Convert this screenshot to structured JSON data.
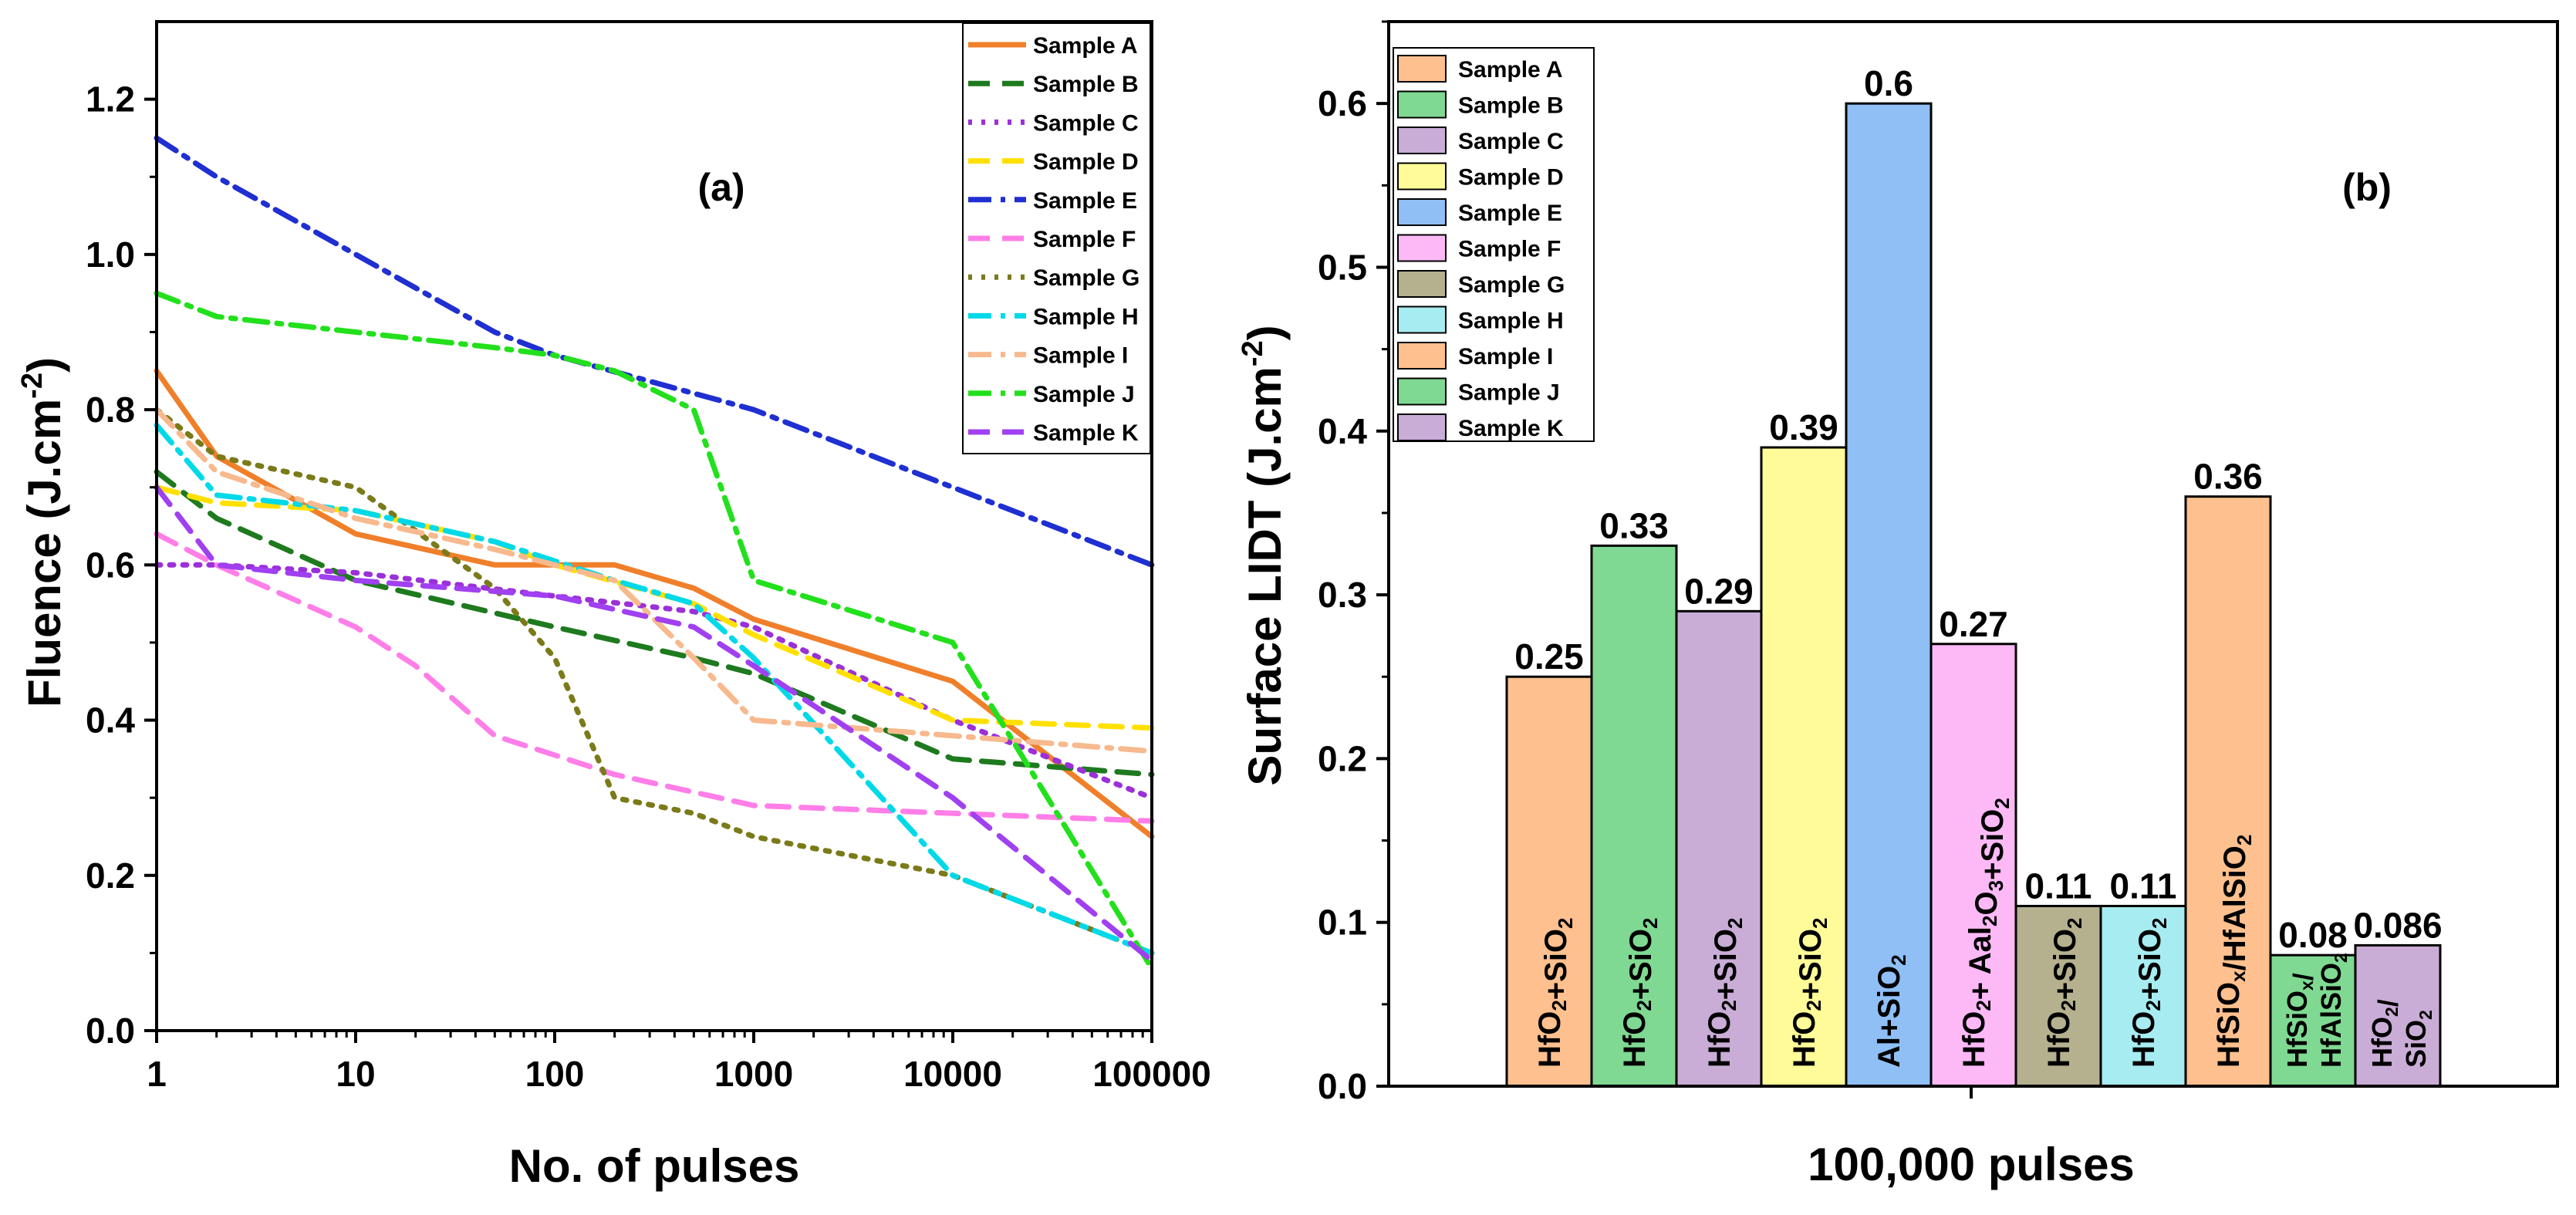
{
  "chart_data": [
    {
      "type": "line",
      "panel_label": "(a)",
      "xlabel": "No. of pulses",
      "ylabel": "Fluence (J.cm",
      "ylabel_sup": "-2",
      "ylabel_close": ")",
      "xscale": "log",
      "xlim": [
        1,
        100000
      ],
      "ylim": [
        0,
        1.3
      ],
      "xticks": [
        1,
        10,
        100,
        1000,
        10000,
        100000
      ],
      "xtick_labels": [
        "1",
        "10",
        "100",
        "1000",
        "10000",
        "100000"
      ],
      "yticks": [
        0,
        0.2,
        0.4,
        0.6,
        0.8,
        1.0,
        1.2
      ],
      "ytick_labels": [
        "0.0",
        "0.2",
        "0.4",
        "0.6",
        "0.8",
        "1.0",
        "1.2"
      ],
      "legend_position": "top-right",
      "series": [
        {
          "name": "Sample A",
          "color": "#f07f2a",
          "dash": "solid",
          "x": [
            1,
            2,
            10,
            50,
            200,
            500,
            1000,
            10000,
            100000
          ],
          "values": [
            0.85,
            0.74,
            0.64,
            0.6,
            0.6,
            0.57,
            0.53,
            0.45,
            0.25
          ]
        },
        {
          "name": "Sample B",
          "color": "#1e7a1e",
          "dash": "dash",
          "x": [
            1,
            2,
            10,
            100,
            500,
            1000,
            10000,
            100000
          ],
          "values": [
            0.72,
            0.66,
            0.58,
            0.52,
            0.48,
            0.46,
            0.35,
            0.33
          ]
        },
        {
          "name": "Sample C",
          "color": "#9b30d9",
          "dash": "dot",
          "x": [
            1,
            2,
            10,
            100,
            500,
            1000,
            10000,
            100000
          ],
          "values": [
            0.6,
            0.6,
            0.59,
            0.56,
            0.54,
            0.52,
            0.4,
            0.3
          ]
        },
        {
          "name": "Sample D",
          "color": "#ffe000",
          "dash": "dash",
          "x": [
            1,
            2,
            10,
            50,
            100,
            500,
            1000,
            10000,
            100000
          ],
          "values": [
            0.7,
            0.68,
            0.67,
            0.63,
            0.6,
            0.55,
            0.51,
            0.4,
            0.39
          ]
        },
        {
          "name": "Sample E",
          "color": "#1f2fd1",
          "dash": "dashdot",
          "x": [
            1,
            2,
            10,
            50,
            100,
            1000,
            10000,
            100000
          ],
          "values": [
            1.15,
            1.1,
            1.0,
            0.9,
            0.87,
            0.8,
            0.7,
            0.6
          ]
        },
        {
          "name": "Sample F",
          "color": "#ff7ee8",
          "dash": "dash",
          "x": [
            1,
            2,
            10,
            20,
            50,
            200,
            1000,
            10000,
            100000
          ],
          "values": [
            0.64,
            0.6,
            0.52,
            0.47,
            0.38,
            0.33,
            0.29,
            0.28,
            0.27
          ]
        },
        {
          "name": "Sample G",
          "color": "#7a7a1a",
          "dash": "dot",
          "x": [
            1,
            2,
            10,
            50,
            100,
            200,
            500,
            1000,
            10000,
            100000
          ],
          "values": [
            0.8,
            0.74,
            0.7,
            0.57,
            0.48,
            0.3,
            0.28,
            0.25,
            0.2,
            0.1
          ]
        },
        {
          "name": "Sample H",
          "color": "#00d9e8",
          "dash": "dashdot",
          "x": [
            1,
            2,
            10,
            50,
            200,
            500,
            1000,
            10000,
            100000
          ],
          "values": [
            0.78,
            0.69,
            0.67,
            0.63,
            0.58,
            0.55,
            0.48,
            0.2,
            0.1
          ]
        },
        {
          "name": "Sample I",
          "color": "#f7b98d",
          "dash": "dashdot",
          "x": [
            1,
            2,
            10,
            50,
            200,
            500,
            1000,
            10000,
            100000
          ],
          "values": [
            0.8,
            0.72,
            0.66,
            0.62,
            0.58,
            0.48,
            0.4,
            0.38,
            0.36
          ]
        },
        {
          "name": "Sample J",
          "color": "#22e01c",
          "dash": "dashdot",
          "x": [
            1,
            2,
            10,
            50,
            100,
            200,
            500,
            1000,
            10000,
            100000
          ],
          "values": [
            0.95,
            0.92,
            0.9,
            0.88,
            0.87,
            0.85,
            0.8,
            0.58,
            0.5,
            0.08
          ]
        },
        {
          "name": "Sample K",
          "color": "#a040f0",
          "dash": "dash",
          "x": [
            1,
            2,
            10,
            100,
            500,
            1000,
            10000,
            100000
          ],
          "values": [
            0.7,
            0.6,
            0.58,
            0.56,
            0.52,
            0.47,
            0.3,
            0.09
          ]
        }
      ]
    },
    {
      "type": "bar",
      "panel_label": "(b)",
      "xlabel": "100,000 pulses",
      "ylabel": "Surface LIDT (J.cm",
      "ylabel_sup": "-2",
      "ylabel_close": ")",
      "ylim": [
        0,
        0.65
      ],
      "yticks": [
        0,
        0.1,
        0.2,
        0.3,
        0.4,
        0.5,
        0.6
      ],
      "ytick_labels": [
        "0.0",
        "0.1",
        "0.2",
        "0.3",
        "0.4",
        "0.5",
        "0.6"
      ],
      "legend_position": "top-left",
      "series_names": [
        "Sample A",
        "Sample B",
        "Sample C",
        "Sample D",
        "Sample E",
        "Sample F",
        "Sample G",
        "Sample H",
        "Sample I",
        "Sample J",
        "Sample K"
      ],
      "colors": [
        "#fdc08e",
        "#7fd992",
        "#c9add6",
        "#fffb99",
        "#8fbff5",
        "#fcb9f6",
        "#b5b08e",
        "#a7ecf0",
        "#fdc08e",
        "#7fd992",
        "#c9add6"
      ],
      "values": [
        0.25,
        0.33,
        0.29,
        0.39,
        0.6,
        0.27,
        0.11,
        0.11,
        0.36,
        0.08,
        0.086
      ],
      "value_labels": [
        "0.25",
        "0.33",
        "0.29",
        "0.39",
        "0.6",
        "0.27",
        "0.11",
        "0.11",
        "0.36",
        "0.08",
        "0.086"
      ],
      "bar_labels": [
        [
          [
            "HfO",
            ""
          ],
          [
            "2",
            "sub"
          ],
          [
            "+SiO",
            ""
          ],
          [
            "2",
            "sub"
          ]
        ],
        [
          [
            "HfO",
            ""
          ],
          [
            "2",
            "sub"
          ],
          [
            "+SiO",
            ""
          ],
          [
            "2",
            "sub"
          ]
        ],
        [
          [
            "HfO",
            ""
          ],
          [
            "2",
            "sub"
          ],
          [
            "+SiO",
            ""
          ],
          [
            "2",
            "sub"
          ]
        ],
        [
          [
            "HfO",
            ""
          ],
          [
            "2",
            "sub"
          ],
          [
            "+SiO",
            ""
          ],
          [
            "2",
            "sub"
          ]
        ],
        [
          [
            "Al+SiO",
            ""
          ],
          [
            "2",
            "sub"
          ]
        ],
        [
          [
            "HfO",
            ""
          ],
          [
            "2",
            "sub"
          ],
          [
            "+ Aal",
            ""
          ],
          [
            "2",
            "sub"
          ],
          [
            "O",
            ""
          ],
          [
            "3",
            "sub"
          ],
          [
            "+SiO",
            ""
          ],
          [
            "2",
            "sub"
          ]
        ],
        [
          [
            "HfO",
            ""
          ],
          [
            "2",
            "sub"
          ],
          [
            "+SiO",
            ""
          ],
          [
            "2",
            "sub"
          ]
        ],
        [
          [
            "HfO",
            ""
          ],
          [
            "2",
            "sub"
          ],
          [
            "+SiO",
            ""
          ],
          [
            "2",
            "sub"
          ]
        ],
        [
          [
            "HfSiO",
            ""
          ],
          [
            "x",
            "sub"
          ],
          [
            "/HfAlSiO",
            ""
          ],
          [
            "2",
            "sub"
          ]
        ],
        [
          [
            "HfSiO",
            ""
          ],
          [
            "x",
            "sub"
          ],
          [
            "/",
            ""
          ],
          [
            "|",
            "br"
          ],
          [
            "HfAlSiO",
            ""
          ],
          [
            "2",
            "sub"
          ]
        ],
        [
          [
            "HfO",
            ""
          ],
          [
            "2",
            "sub"
          ],
          [
            "/",
            ""
          ],
          [
            "|",
            "br"
          ],
          [
            "SiO",
            ""
          ],
          [
            "2",
            "sub"
          ]
        ]
      ]
    }
  ]
}
